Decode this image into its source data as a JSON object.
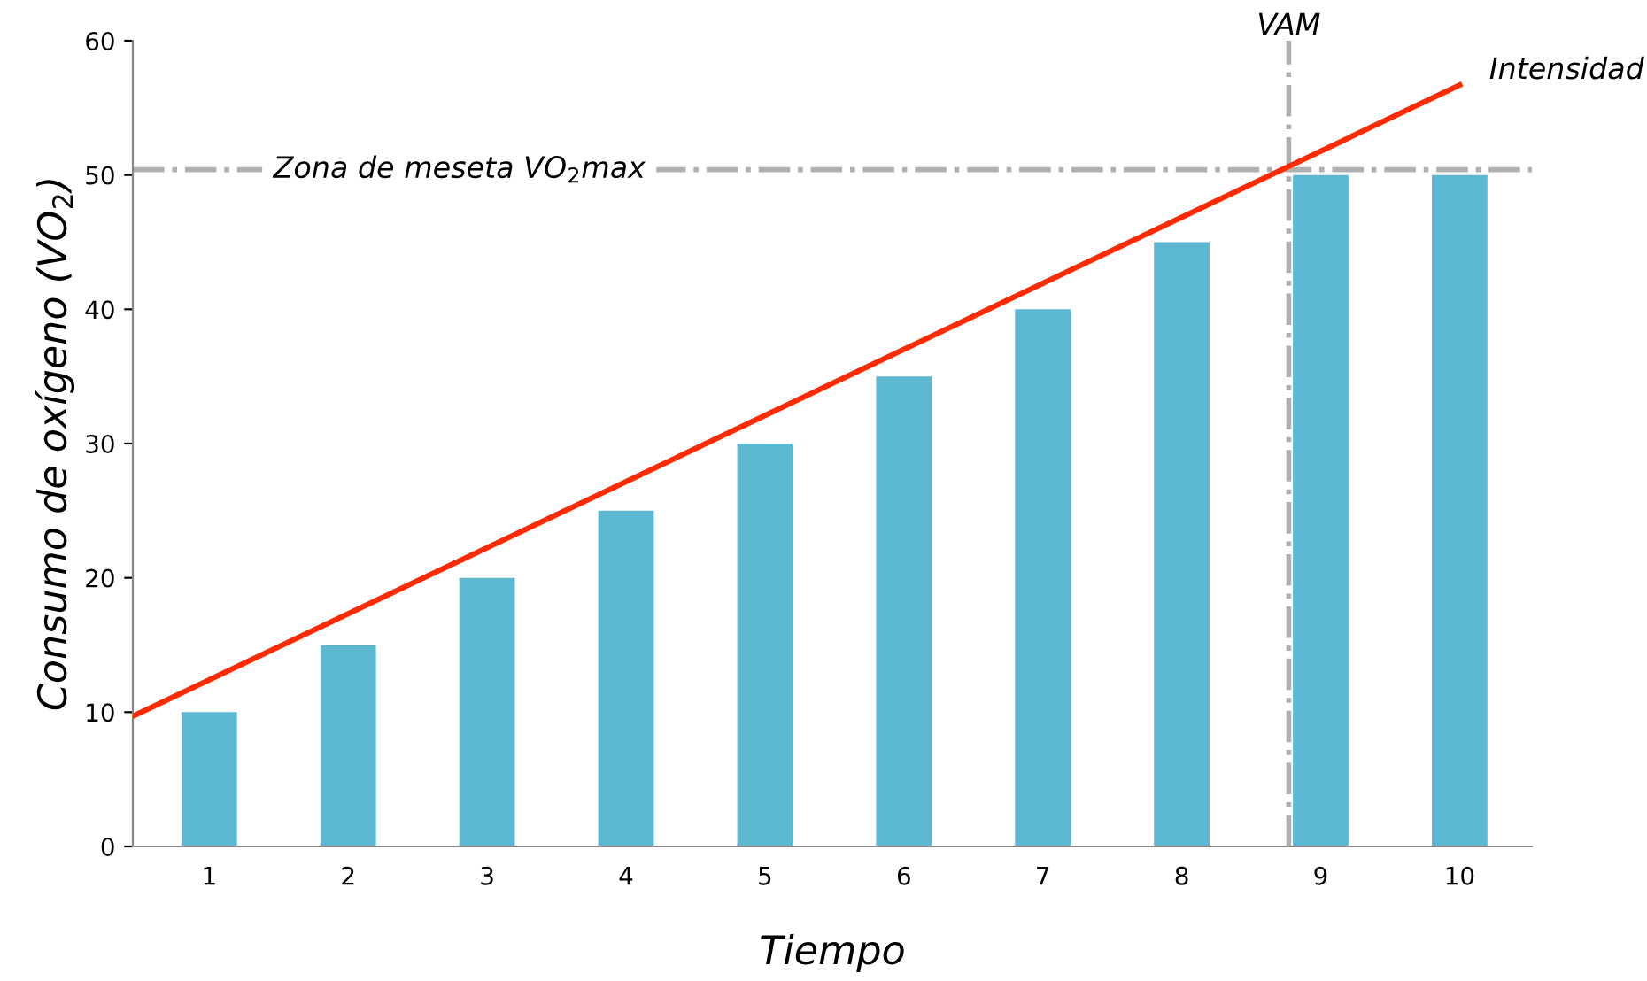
{
  "chart_data": {
    "type": "bar",
    "xlabel": "Tiempo",
    "ylabel": "Consumo de oxígeno (VO$_{2}$)",
    "x": [
      1,
      2,
      3,
      4,
      5,
      6,
      7,
      8,
      9,
      10
    ],
    "series": [
      {
        "color": "#5bb8d0",
        "values": [
          10,
          15,
          20,
          25,
          30,
          35,
          40,
          45,
          50,
          50
        ]
      },
      {
        "type": "line",
        "color": "#ff2a00",
        "x": [
          0.45,
          10.0
        ],
        "values": [
          9.7,
          56.7
        ]
      }
    ],
    "xlim": [
      0.45,
      10.52
    ],
    "xticks": [
      1,
      2,
      3,
      4,
      5,
      6,
      7,
      8,
      9,
      10
    ],
    "ylim": [
      0,
      60
    ],
    "yticks": [
      0,
      10,
      20,
      30,
      40,
      50,
      60
    ],
    "ref_lines": [
      {
        "axis": "y",
        "value": 50.4,
        "label": "Zona de meseta VO$_{2}$max",
        "color": "#b0b0b0",
        "line_style": "dashdot"
      },
      {
        "axis": "x",
        "value": 8.77,
        "label": "VAM",
        "color": "#b0b0b0",
        "line_style": "dashdot"
      }
    ],
    "annotations": [
      {
        "text": "Intensidad",
        "x": 10.0,
        "y": 56.7
      }
    ],
    "grid": false,
    "legend": false
  }
}
